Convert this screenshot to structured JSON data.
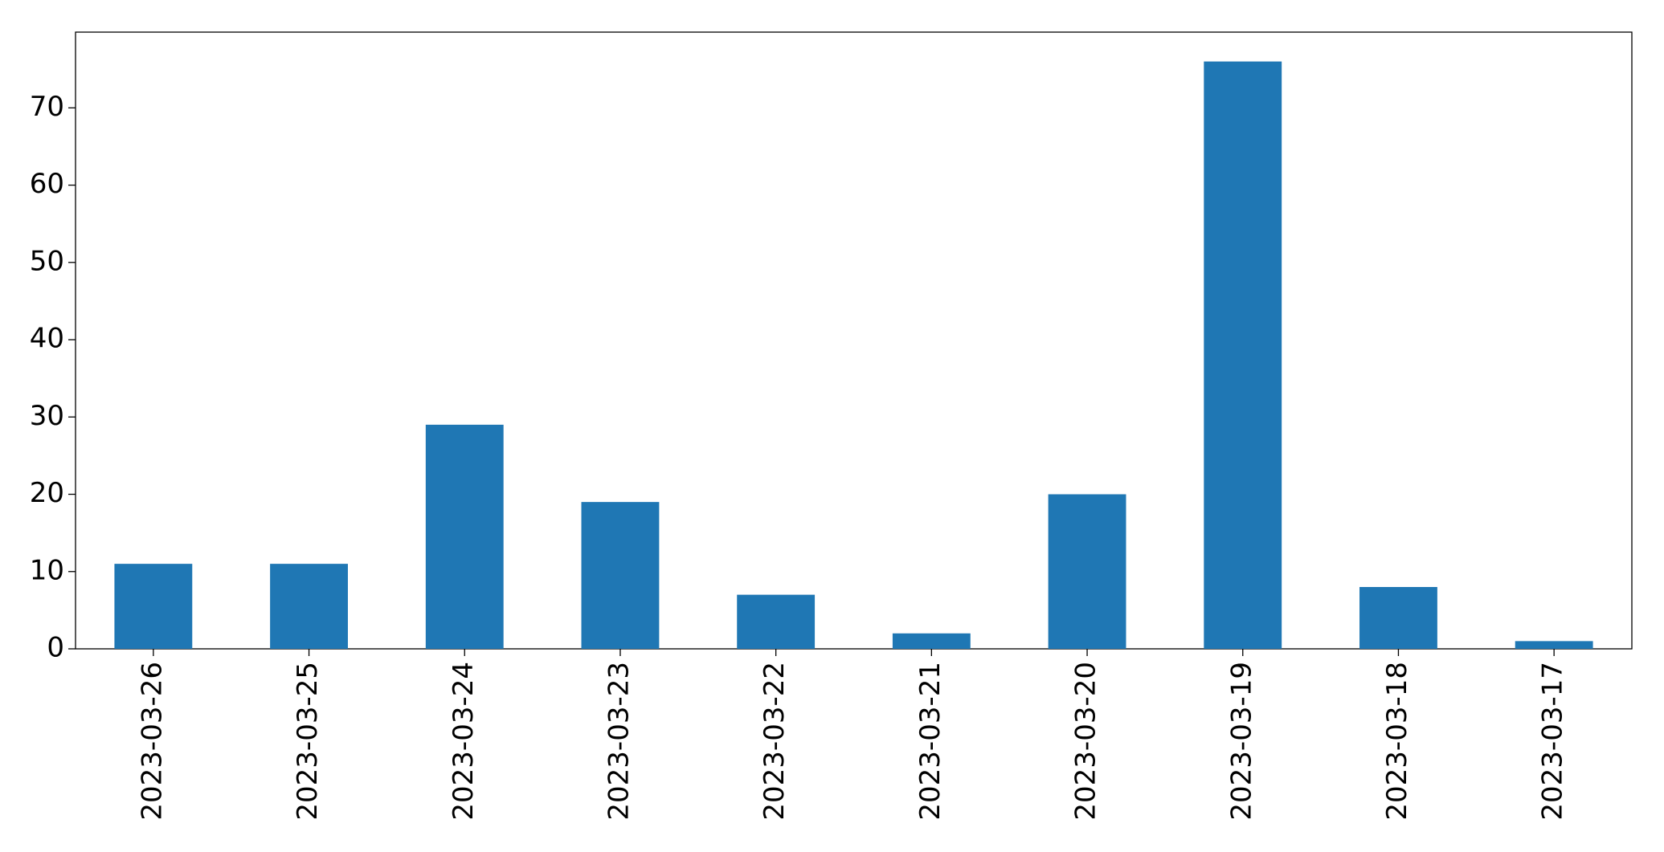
{
  "chart_data": {
    "type": "bar",
    "categories": [
      "2023-03-26",
      "2023-03-25",
      "2023-03-24",
      "2023-03-23",
      "2023-03-22",
      "2023-03-21",
      "2023-03-20",
      "2023-03-19",
      "2023-03-18",
      "2023-03-17"
    ],
    "values": [
      11,
      11,
      29,
      19,
      7,
      2,
      20,
      76,
      8,
      1
    ],
    "color": "#1f77b4",
    "ylim": [
      0,
      79.8
    ],
    "yticks": [
      0,
      10,
      20,
      30,
      40,
      50,
      60,
      70
    ],
    "grid": false
  }
}
